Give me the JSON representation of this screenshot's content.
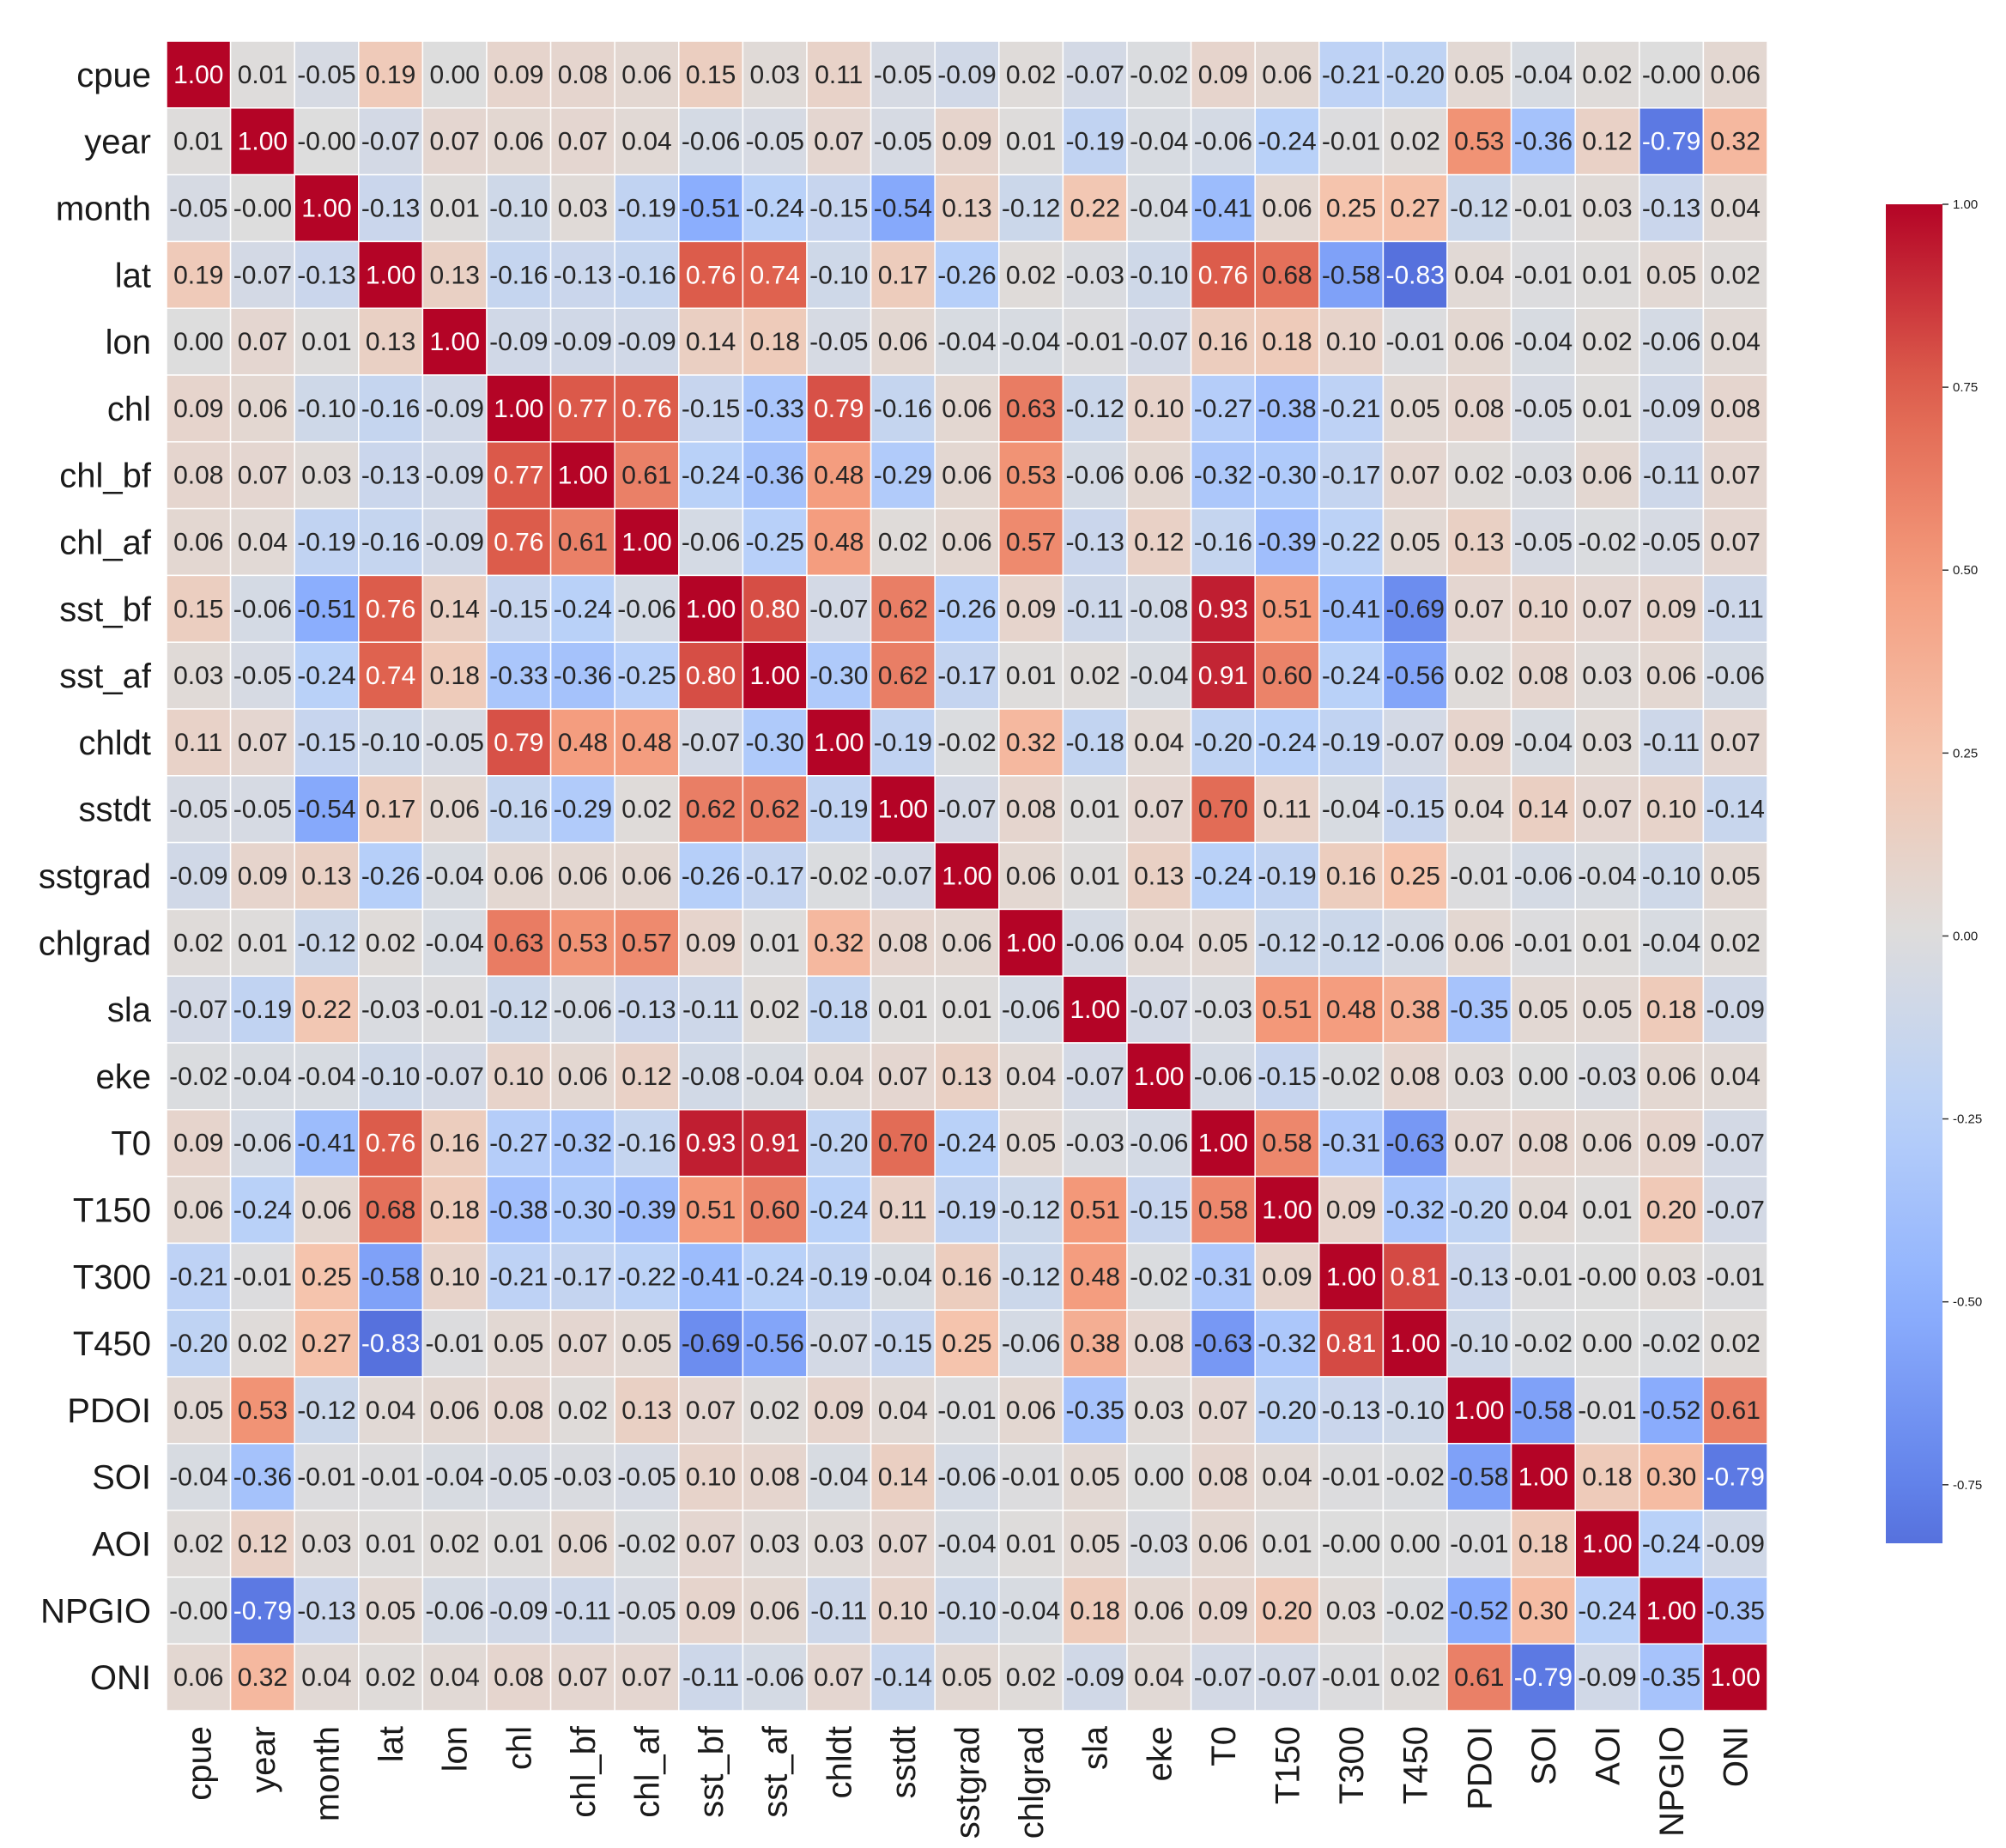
{
  "chart_data": {
    "type": "heatmap",
    "title": "",
    "labels": [
      "cpue",
      "year",
      "month",
      "lat",
      "lon",
      "chl",
      "chl_bf",
      "chl_af",
      "sst_bf",
      "sst_af",
      "chldt",
      "sstdt",
      "sstgrad",
      "chlgrad",
      "sla",
      "eke",
      "T0",
      "T150",
      "T300",
      "T450",
      "PDOI",
      "SOI",
      "AOI",
      "NPGIO",
      "ONI"
    ],
    "row_labels_shown": [
      "cpue",
      "year",
      "month",
      "lat",
      "lon",
      "chl",
      "chl_bf",
      "chl_af",
      "sst_bf",
      "sst_af",
      "chldt",
      "sstdt",
      "sstgrad",
      "chlgrad",
      "sla",
      "eke",
      "T0",
      "T150",
      "T300",
      "T450",
      "PDOI",
      "SOI",
      "AOI",
      "NPGIO",
      "ONI"
    ],
    "matrix": [
      [
        "1.00",
        "0.01",
        "-0.05",
        "0.19",
        "0.00",
        "0.09",
        "0.08",
        "0.06",
        "0.15",
        "0.03",
        "0.11",
        "-0.05",
        "-0.09",
        "0.02",
        "-0.07",
        "-0.02",
        "0.09",
        "0.06",
        "-0.21",
        "-0.20",
        "0.05",
        "-0.04",
        "0.02",
        "-0.00",
        "0.06"
      ],
      [
        "0.01",
        "1.00",
        "-0.00",
        "-0.07",
        "0.07",
        "0.06",
        "0.07",
        "0.04",
        "-0.06",
        "-0.05",
        "0.07",
        "-0.05",
        "0.09",
        "0.01",
        "-0.19",
        "-0.04",
        "-0.06",
        "-0.24",
        "-0.01",
        "0.02",
        "0.53",
        "-0.36",
        "0.12",
        "-0.79",
        "0.32"
      ],
      [
        "-0.05",
        "-0.00",
        "1.00",
        "-0.13",
        "0.01",
        "-0.10",
        "0.03",
        "-0.19",
        "-0.51",
        "-0.24",
        "-0.15",
        "-0.54",
        "0.13",
        "-0.12",
        "0.22",
        "-0.04",
        "-0.41",
        "0.06",
        "0.25",
        "0.27",
        "-0.12",
        "-0.01",
        "0.03",
        "-0.13",
        "0.04"
      ],
      [
        "0.19",
        "-0.07",
        "-0.13",
        "1.00",
        "0.13",
        "-0.16",
        "-0.13",
        "-0.16",
        "0.76",
        "0.74",
        "-0.10",
        "0.17",
        "-0.26",
        "0.02",
        "-0.03",
        "-0.10",
        "0.76",
        "0.68",
        "-0.58",
        "-0.83",
        "0.04",
        "-0.01",
        "0.01",
        "0.05",
        "0.02"
      ],
      [
        "0.00",
        "0.07",
        "0.01",
        "0.13",
        "1.00",
        "-0.09",
        "-0.09",
        "-0.09",
        "0.14",
        "0.18",
        "-0.05",
        "0.06",
        "-0.04",
        "-0.04",
        "-0.01",
        "-0.07",
        "0.16",
        "0.18",
        "0.10",
        "-0.01",
        "0.06",
        "-0.04",
        "0.02",
        "-0.06",
        "0.04"
      ],
      [
        "0.09",
        "0.06",
        "-0.10",
        "-0.16",
        "-0.09",
        "1.00",
        "0.77",
        "0.76",
        "-0.15",
        "-0.33",
        "0.79",
        "-0.16",
        "0.06",
        "0.63",
        "-0.12",
        "0.10",
        "-0.27",
        "-0.38",
        "-0.21",
        "0.05",
        "0.08",
        "-0.05",
        "0.01",
        "-0.09",
        "0.08"
      ],
      [
        "0.08",
        "0.07",
        "0.03",
        "-0.13",
        "-0.09",
        "0.77",
        "1.00",
        "0.61",
        "-0.24",
        "-0.36",
        "0.48",
        "-0.29",
        "0.06",
        "0.53",
        "-0.06",
        "0.06",
        "-0.32",
        "-0.30",
        "-0.17",
        "0.07",
        "0.02",
        "-0.03",
        "0.06",
        "-0.11",
        "0.07"
      ],
      [
        "0.06",
        "0.04",
        "-0.19",
        "-0.16",
        "-0.09",
        "0.76",
        "0.61",
        "1.00",
        "-0.06",
        "-0.25",
        "0.48",
        "0.02",
        "0.06",
        "0.57",
        "-0.13",
        "0.12",
        "-0.16",
        "-0.39",
        "-0.22",
        "0.05",
        "0.13",
        "-0.05",
        "-0.02",
        "-0.05",
        "0.07"
      ],
      [
        "0.15",
        "-0.06",
        "-0.51",
        "0.76",
        "0.14",
        "-0.15",
        "-0.24",
        "-0.06",
        "1.00",
        "0.80",
        "-0.07",
        "0.62",
        "-0.26",
        "0.09",
        "-0.11",
        "-0.08",
        "0.93",
        "0.51",
        "-0.41",
        "-0.69",
        "0.07",
        "0.10",
        "0.07",
        "0.09",
        "-0.11"
      ],
      [
        "0.03",
        "-0.05",
        "-0.24",
        "0.74",
        "0.18",
        "-0.33",
        "-0.36",
        "-0.25",
        "0.80",
        "1.00",
        "-0.30",
        "0.62",
        "-0.17",
        "0.01",
        "0.02",
        "-0.04",
        "0.91",
        "0.60",
        "-0.24",
        "-0.56",
        "0.02",
        "0.08",
        "0.03",
        "0.06",
        "-0.06"
      ],
      [
        "0.11",
        "0.07",
        "-0.15",
        "-0.10",
        "-0.05",
        "0.79",
        "0.48",
        "0.48",
        "-0.07",
        "-0.30",
        "1.00",
        "-0.19",
        "-0.02",
        "0.32",
        "-0.18",
        "0.04",
        "-0.20",
        "-0.24",
        "-0.19",
        "-0.07",
        "0.09",
        "-0.04",
        "0.03",
        "-0.11",
        "0.07"
      ],
      [
        "-0.05",
        "-0.05",
        "-0.54",
        "0.17",
        "0.06",
        "-0.16",
        "-0.29",
        "0.02",
        "0.62",
        "0.62",
        "-0.19",
        "1.00",
        "-0.07",
        "0.08",
        "0.01",
        "0.07",
        "0.70",
        "0.11",
        "-0.04",
        "-0.15",
        "0.04",
        "0.14",
        "0.07",
        "0.10",
        "-0.14"
      ],
      [
        "-0.09",
        "0.09",
        "0.13",
        "-0.26",
        "-0.04",
        "0.06",
        "0.06",
        "0.06",
        "-0.26",
        "-0.17",
        "-0.02",
        "-0.07",
        "1.00",
        "0.06",
        "0.01",
        "0.13",
        "-0.24",
        "-0.19",
        "0.16",
        "0.25",
        "-0.01",
        "-0.06",
        "-0.04",
        "-0.10",
        "0.05"
      ],
      [
        "0.02",
        "0.01",
        "-0.12",
        "0.02",
        "-0.04",
        "0.63",
        "0.53",
        "0.57",
        "0.09",
        "0.01",
        "0.32",
        "0.08",
        "0.06",
        "1.00",
        "-0.06",
        "0.04",
        "0.05",
        "-0.12",
        "-0.12",
        "-0.06",
        "0.06",
        "-0.01",
        "0.01",
        "-0.04",
        "0.02"
      ],
      [
        "-0.07",
        "-0.19",
        "0.22",
        "-0.03",
        "-0.01",
        "-0.12",
        "-0.06",
        "-0.13",
        "-0.11",
        "0.02",
        "-0.18",
        "0.01",
        "0.01",
        "-0.06",
        "1.00",
        "-0.07",
        "-0.03",
        "0.51",
        "0.48",
        "0.38",
        "-0.35",
        "0.05",
        "0.05",
        "0.18",
        "-0.09"
      ],
      [
        "-0.02",
        "-0.04",
        "-0.04",
        "-0.10",
        "-0.07",
        "0.10",
        "0.06",
        "0.12",
        "-0.08",
        "-0.04",
        "0.04",
        "0.07",
        "0.13",
        "0.04",
        "-0.07",
        "1.00",
        "-0.06",
        "-0.15",
        "-0.02",
        "0.08",
        "0.03",
        "0.00",
        "-0.03",
        "0.06",
        "0.04"
      ],
      [
        "0.09",
        "-0.06",
        "-0.41",
        "0.76",
        "0.16",
        "-0.27",
        "-0.32",
        "-0.16",
        "0.93",
        "0.91",
        "-0.20",
        "0.70",
        "-0.24",
        "0.05",
        "-0.03",
        "-0.06",
        "1.00",
        "0.58",
        "-0.31",
        "-0.63",
        "0.07",
        "0.08",
        "0.06",
        "0.09",
        "-0.07"
      ],
      [
        "0.06",
        "-0.24",
        "0.06",
        "0.68",
        "0.18",
        "-0.38",
        "-0.30",
        "-0.39",
        "0.51",
        "0.60",
        "-0.24",
        "0.11",
        "-0.19",
        "-0.12",
        "0.51",
        "-0.15",
        "0.58",
        "1.00",
        "0.09",
        "-0.32",
        "-0.20",
        "0.04",
        "0.01",
        "0.20",
        "-0.07"
      ],
      [
        "-0.21",
        "-0.01",
        "0.25",
        "-0.58",
        "0.10",
        "-0.21",
        "-0.17",
        "-0.22",
        "-0.41",
        "-0.24",
        "-0.19",
        "-0.04",
        "0.16",
        "-0.12",
        "0.48",
        "-0.02",
        "-0.31",
        "0.09",
        "1.00",
        "0.81",
        "-0.13",
        "-0.01",
        "-0.00",
        "0.03",
        "-0.01"
      ],
      [
        "-0.20",
        "0.02",
        "0.27",
        "-0.83",
        "-0.01",
        "0.05",
        "0.07",
        "0.05",
        "-0.69",
        "-0.56",
        "-0.07",
        "-0.15",
        "0.25",
        "-0.06",
        "0.38",
        "0.08",
        "-0.63",
        "-0.32",
        "0.81",
        "1.00",
        "-0.10",
        "-0.02",
        "0.00",
        "-0.02",
        "0.02"
      ],
      [
        "0.05",
        "0.53",
        "-0.12",
        "0.04",
        "0.06",
        "0.08",
        "0.02",
        "0.13",
        "0.07",
        "0.02",
        "0.09",
        "0.04",
        "-0.01",
        "0.06",
        "-0.35",
        "0.03",
        "0.07",
        "-0.20",
        "-0.13",
        "-0.10",
        "1.00",
        "-0.58",
        "-0.01",
        "-0.52",
        "0.61"
      ],
      [
        "-0.04",
        "-0.36",
        "-0.01",
        "-0.01",
        "-0.04",
        "-0.05",
        "-0.03",
        "-0.05",
        "0.10",
        "0.08",
        "-0.04",
        "0.14",
        "-0.06",
        "-0.01",
        "0.05",
        "0.00",
        "0.08",
        "0.04",
        "-0.01",
        "-0.02",
        "-0.58",
        "1.00",
        "0.18",
        "0.30",
        "-0.79"
      ],
      [
        "0.02",
        "0.12",
        "0.03",
        "0.01",
        "0.02",
        "0.01",
        "0.06",
        "-0.02",
        "0.07",
        "0.03",
        "0.03",
        "0.07",
        "-0.04",
        "0.01",
        "0.05",
        "-0.03",
        "0.06",
        "0.01",
        "-0.00",
        "0.00",
        "-0.01",
        "0.18",
        "1.00",
        "-0.24",
        "-0.09"
      ],
      [
        "-0.00",
        "-0.79",
        "-0.13",
        "0.05",
        "-0.06",
        "-0.09",
        "-0.11",
        "-0.05",
        "0.09",
        "0.06",
        "-0.11",
        "0.10",
        "-0.10",
        "-0.04",
        "0.18",
        "0.06",
        "0.09",
        "0.20",
        "0.03",
        "-0.02",
        "-0.52",
        "0.30",
        "-0.24",
        "1.00",
        "-0.35"
      ],
      [
        "0.06",
        "0.32",
        "0.04",
        "0.02",
        "0.04",
        "0.08",
        "0.07",
        "0.07",
        "-0.11",
        "-0.06",
        "0.07",
        "-0.14",
        "0.05",
        "0.02",
        "-0.09",
        "0.04",
        "-0.07",
        "-0.07",
        "-0.01",
        "0.02",
        "0.61",
        "-0.79",
        "-0.09",
        "-0.35",
        "1.00"
      ]
    ],
    "colorbar": {
      "ticks": [
        "1.00",
        "0.75",
        "0.50",
        "0.25",
        "0.00",
        "-0.25",
        "-0.50",
        "-0.75"
      ],
      "tick_values": [
        1.0,
        0.75,
        0.5,
        0.25,
        0.0,
        -0.25,
        -0.5,
        -0.75
      ],
      "vmin": -0.83,
      "vmax": 1.0
    },
    "colormap": "coolwarm",
    "grid": true
  }
}
